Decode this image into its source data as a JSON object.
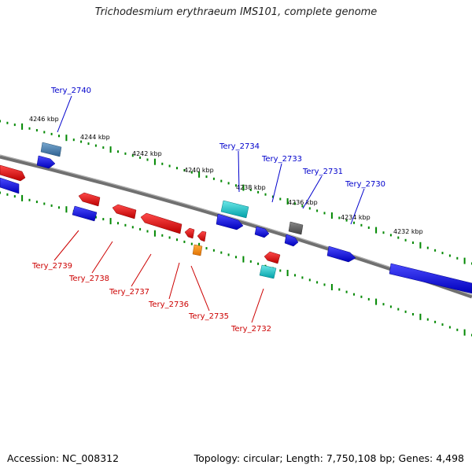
{
  "title": "Trichodesmium erythraeum IMS101, complete genome",
  "footer": {
    "accession": "Accession: NC_008312",
    "topology": "Topology: circular; Length: 7,750,108 bp; Genes: 4,498"
  },
  "colors": {
    "forward": "#0000ee",
    "reverse": "#ee0000",
    "cyan": "#00c8c8",
    "orange": "#ff8800",
    "steelblue": "#4682b4",
    "gray": "#666666",
    "label_forward": "#0000cc",
    "label_reverse": "#cc0000",
    "tick": "#008800"
  },
  "scale_labels": [
    "4246 kbp",
    "4244 kbp",
    "4242 kbp",
    "4240 kbp",
    "4238 kbp",
    "4236 kbp",
    "4234 kbp",
    "4232 kbp"
  ],
  "genes_top": [
    "Tery_2740",
    "Tery_2734",
    "Tery_2733",
    "Tery_2731",
    "Tery_2730"
  ],
  "genes_bottom": [
    "Tery_2739",
    "Tery_2738",
    "Tery_2737",
    "Tery_2736",
    "Tery_2735",
    "Tery_2732"
  ]
}
